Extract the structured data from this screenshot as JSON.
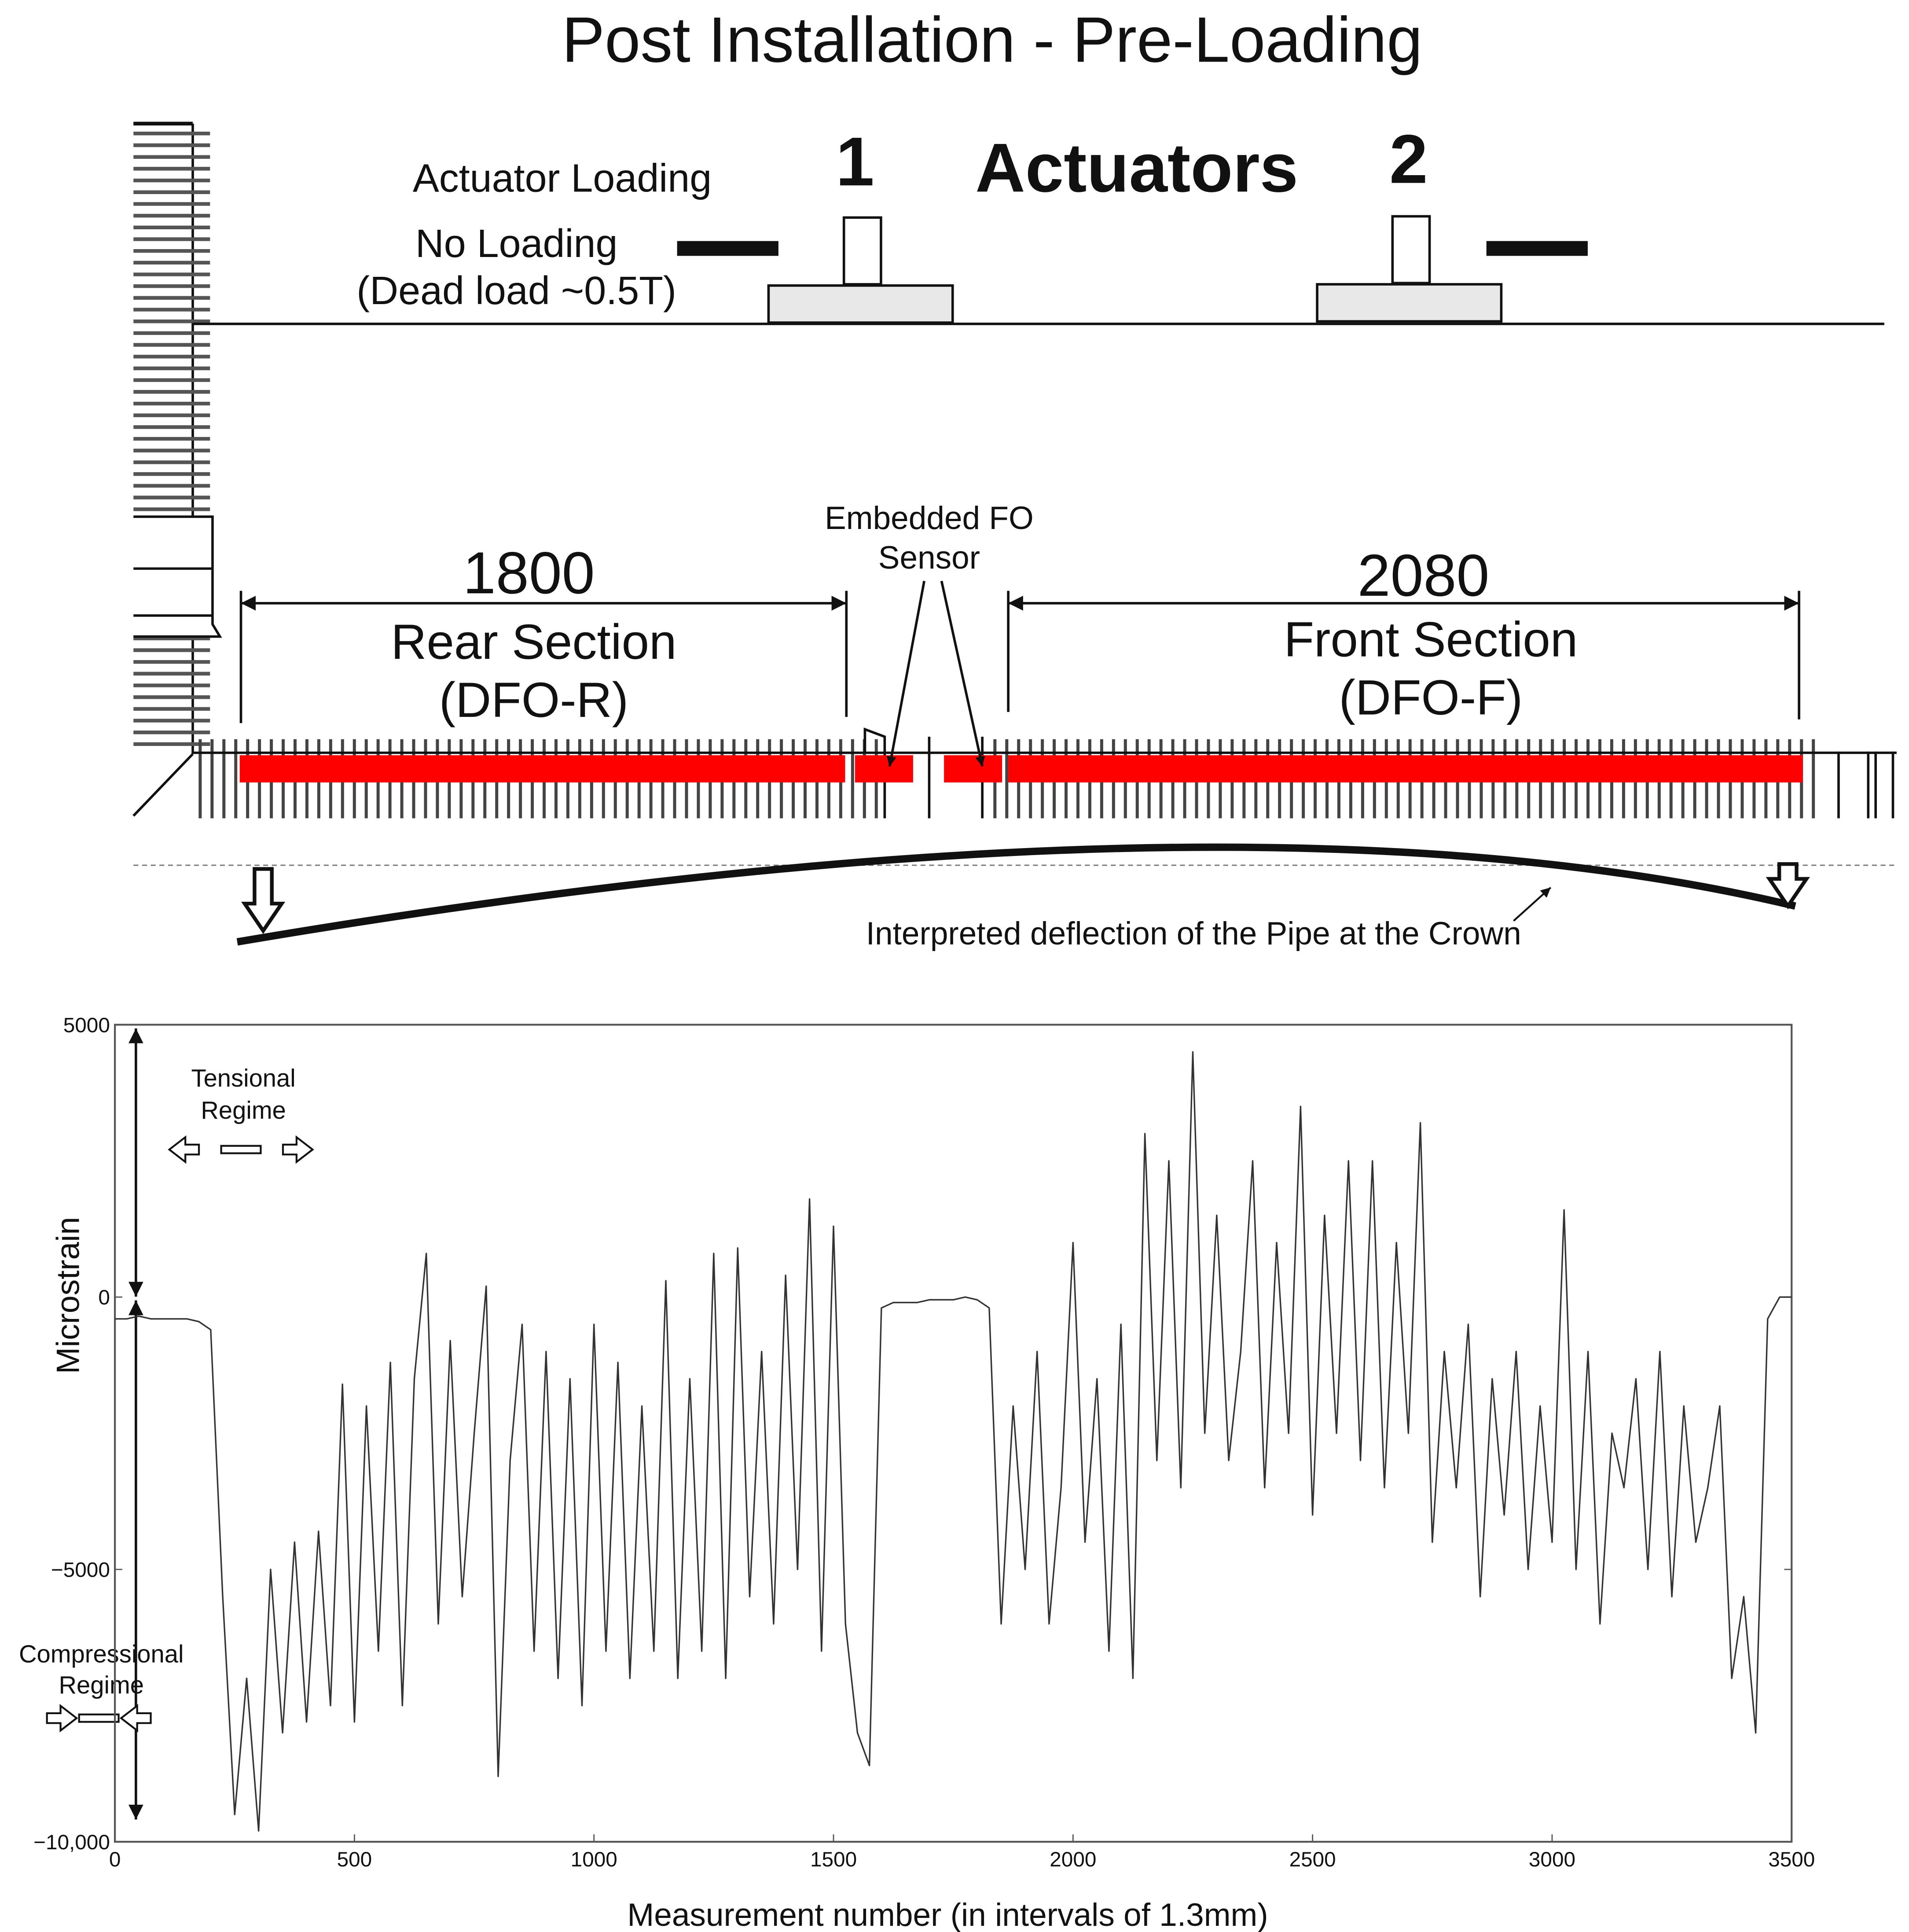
{
  "title": "Post Installation - Pre-Loading",
  "diagram": {
    "loading_label": "Actuator Loading",
    "no_loading_label": "No Loading",
    "dead_load_label": "(Dead load ~0.5T)",
    "actuator_1": "1",
    "actuators_label": "Actuators",
    "actuator_2": "2",
    "sensor_label": [
      "Embedded FO",
      "Sensor"
    ],
    "rear_length": "1800",
    "rear_label": [
      "Rear Section",
      "(DFO-R)"
    ],
    "front_length": "2080",
    "front_label": [
      "Front Section",
      "(DFO-F)"
    ],
    "deflection_label": "Interpreted deflection of the Pipe at the Crown"
  },
  "chart_data": {
    "type": "line",
    "xlabel": "Measurement number (in intervals of 1.3mm)",
    "ylabel": "Microstrain",
    "tension_label": [
      "Tensional",
      "Regime"
    ],
    "compression_label": [
      "Compressional",
      "Regime"
    ],
    "color": "#333333",
    "xlim": [
      0,
      3500
    ],
    "ylim": [
      -10000,
      5000
    ],
    "xticks": [
      0,
      500,
      1000,
      1500,
      2000,
      2500,
      3000,
      3500
    ],
    "yticks": [
      {
        "value": -10000,
        "label": "−10,000"
      },
      {
        "value": -5000,
        "label": "−5000"
      },
      0,
      5000
    ],
    "x": [
      0,
      25,
      50,
      75,
      100,
      125,
      150,
      175,
      200,
      225,
      250,
      275,
      300,
      325,
      350,
      375,
      400,
      425,
      450,
      475,
      500,
      525,
      550,
      575,
      600,
      625,
      650,
      675,
      700,
      725,
      750,
      775,
      800,
      825,
      850,
      875,
      900,
      925,
      950,
      975,
      1000,
      1025,
      1050,
      1075,
      1100,
      1125,
      1150,
      1175,
      1200,
      1225,
      1250,
      1275,
      1300,
      1325,
      1350,
      1375,
      1400,
      1425,
      1450,
      1475,
      1500,
      1525,
      1550,
      1575,
      1600,
      1625,
      1650,
      1675,
      1700,
      1725,
      1750,
      1775,
      1800,
      1825,
      1850,
      1875,
      1900,
      1925,
      1950,
      1975,
      2000,
      2025,
      2050,
      2075,
      2100,
      2125,
      2150,
      2175,
      2200,
      2225,
      2250,
      2275,
      2300,
      2325,
      2350,
      2375,
      2400,
      2425,
      2450,
      2475,
      2500,
      2525,
      2550,
      2575,
      2600,
      2625,
      2650,
      2675,
      2700,
      2725,
      2750,
      2775,
      2800,
      2825,
      2850,
      2875,
      2900,
      2925,
      2950,
      2975,
      3000,
      3025,
      3050,
      3075,
      3100,
      3125,
      3150,
      3175,
      3200,
      3225,
      3250,
      3275,
      3300,
      3325,
      3350,
      3375,
      3400,
      3425,
      3450,
      3475,
      3500
    ],
    "values": [
      -400,
      -400,
      -350,
      -400,
      -400,
      -400,
      -400,
      -450,
      -600,
      -5500,
      -9500,
      -7000,
      -9800,
      -5000,
      -8000,
      -4500,
      -7800,
      -4300,
      -7500,
      -1600,
      -7800,
      -2000,
      -6500,
      -1200,
      -7500,
      -1500,
      800,
      -6000,
      -800,
      -5500,
      -2500,
      200,
      -8800,
      -3000,
      -500,
      -6500,
      -1000,
      -7000,
      -1500,
      -7500,
      -500,
      -6500,
      -1200,
      -7000,
      -2000,
      -6500,
      300,
      -7000,
      -1500,
      -6500,
      800,
      -7000,
      900,
      -5500,
      -1000,
      -6000,
      400,
      -5000,
      1800,
      -6500,
      1300,
      -6000,
      -8000,
      -8600,
      -200,
      -100,
      -100,
      -100,
      -50,
      -50,
      -50,
      0,
      -50,
      -200,
      -6000,
      -2000,
      -5000,
      -1000,
      -6000,
      -3500,
      1000,
      -4500,
      -1500,
      -6500,
      -500,
      -7000,
      3000,
      -3000,
      2500,
      -3500,
      4500,
      -2500,
      1500,
      -3000,
      -1000,
      2500,
      -3500,
      1000,
      -2500,
      3500,
      -4000,
      1500,
      -2500,
      2500,
      -3000,
      2500,
      -3500,
      1000,
      -2500,
      3200,
      -4500,
      -1000,
      -3500,
      -500,
      -5500,
      -1500,
      -4000,
      -1000,
      -5000,
      -2000,
      -4500,
      1600,
      -5000,
      -1000,
      -6000,
      -2500,
      -3500,
      -1500,
      -5000,
      -1000,
      -5500,
      -2000,
      -4500,
      -3500,
      -2000,
      -7000,
      -5500,
      -8000,
      -400,
      0,
      0
    ]
  }
}
